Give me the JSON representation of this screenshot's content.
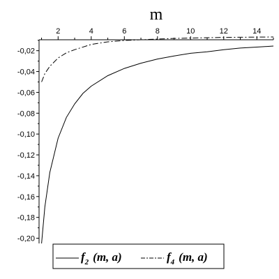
{
  "chart_data": {
    "type": "line",
    "xlabel": "m",
    "xlim": [
      0.85,
      15
    ],
    "ylim": [
      -0.205,
      -0.0095
    ],
    "x_ticks": [
      2,
      4,
      6,
      8,
      10,
      12,
      14
    ],
    "x_tick_labels": [
      "2",
      "4",
      "6",
      "8",
      "10",
      "12",
      "14"
    ],
    "y_ticks": [
      -0.02,
      -0.04,
      -0.06,
      -0.08,
      -0.1,
      -0.12,
      -0.14,
      -0.16,
      -0.18,
      -0.2
    ],
    "y_tick_labels": [
      "-0,02",
      "-0,04",
      "-0,06",
      "-0,08",
      "-0,10",
      "-0,12",
      "-0,14",
      "-0,16",
      "-0,18",
      "-0,20"
    ],
    "grid": false,
    "legend_position": "bottom",
    "series": [
      {
        "name": "f2 (m, a)",
        "style": "solid",
        "color": "#000000",
        "x": [
          1.0,
          1.2,
          1.5,
          2.0,
          2.5,
          3.0,
          3.5,
          4.0,
          5.0,
          6.0,
          7.0,
          8.0,
          9.0,
          10.0,
          11.0,
          12.0,
          13.0,
          14.0,
          15.0
        ],
        "y": [
          -0.205,
          -0.17,
          -0.137,
          -0.104,
          -0.084,
          -0.071,
          -0.061,
          -0.054,
          -0.044,
          -0.037,
          -0.032,
          -0.028,
          -0.025,
          -0.0225,
          -0.021,
          -0.019,
          -0.0175,
          -0.0165,
          -0.0155
        ]
      },
      {
        "name": "f4 (m, a)",
        "style": "dashdot",
        "color": "#000000",
        "x": [
          1.0,
          1.2,
          1.5,
          2.0,
          2.5,
          3.0,
          4.0,
          5.0,
          6.0,
          7.0,
          8.0,
          9.0,
          10.0,
          12.0,
          15.0
        ],
        "y": [
          -0.05,
          -0.042,
          -0.035,
          -0.027,
          -0.022,
          -0.019,
          -0.014,
          -0.0115,
          -0.0102,
          -0.0095,
          -0.0088,
          -0.0082,
          -0.0078,
          -0.0072,
          -0.0068
        ]
      }
    ],
    "legend": [
      {
        "main": "f",
        "sub": "2",
        "args": "(m, a)"
      },
      {
        "main": "f",
        "sub": "4",
        "args": "(m, a)"
      }
    ]
  }
}
